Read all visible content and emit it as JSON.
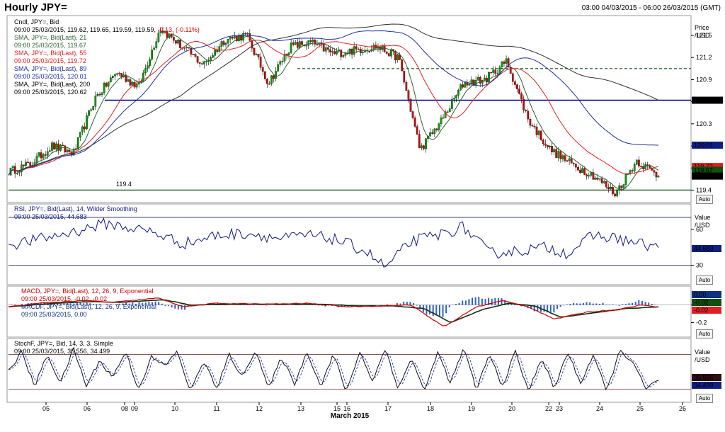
{
  "header": {
    "title": "Hourly JPY=",
    "range": "03:00 04/03/2015 - 06:00 26/03/2015 (GMT)"
  },
  "colors": {
    "up": "#00a000",
    "down": "#d00000",
    "sma21": "#306030",
    "sma55": "#e02020",
    "sma89": "#2030a0",
    "sma200": "#303030",
    "rsi": "#101880",
    "macd": "#d00000",
    "macdf": "#103010",
    "hist": "#3060c0",
    "stoch_k": "#101010",
    "stoch_d": "#3040c0",
    "level": "#000080"
  },
  "price_panel": {
    "legend": [
      {
        "text": "Cndl, JPY=, Bid",
        "color": "#000000"
      },
      {
        "text": "09:00 25/03/2015, 119.62, 119.65, 119.59, 119.59, ",
        "color": "#000000",
        "extra": "-0.13, (-0.11%)",
        "extra_color": "#e00000"
      },
      {
        "text": "SMA, JPY=, Bid(Last),  21",
        "color": "#306030"
      },
      {
        "text": "09:00 25/03/2015, 119.67",
        "color": "#306030"
      },
      {
        "text": "SMA, JPY=, Bid(Last),  55",
        "color": "#e02020"
      },
      {
        "text": "09:00 25/03/2015, 119.72",
        "color": "#e02020"
      },
      {
        "text": "SMA, JPY=, Bid(Last),  89",
        "color": "#2030a0"
      },
      {
        "text": "09:00 25/03/2015, 120.01",
        "color": "#2030a0"
      },
      {
        "text": "SMA, JPY=, Bid(Last),  200",
        "color": "#000000"
      },
      {
        "text": "09:00 25/03/2015, 120.62",
        "color": "#000000"
      }
    ],
    "unit_title": "Price",
    "unit": "/USD",
    "level_label": "119.4",
    "tags": [
      {
        "value": 120.62,
        "label": "120.62",
        "bg": "#000000"
      },
      {
        "value": 120.01,
        "label": "120.01",
        "bg": "#102080"
      },
      {
        "value": 119.72,
        "label": "119.72",
        "bg": "#e02020"
      },
      {
        "value": 119.67,
        "label": "119.67",
        "bg": "#105010"
      },
      {
        "value": 119.59,
        "label": "119.59",
        "bg": "#000000"
      }
    ]
  },
  "rsi_panel": {
    "legend1": "RSI, JPY=, Bid(Last),  14, Wilder Smoothing",
    "legend2": "09:00 25/03/2015, 44.683",
    "unit_title": "Value",
    "unit": "/USD",
    "tag": "44.683"
  },
  "macd_panel": {
    "legend1": "MACD, JPY=, Bid(Last),  12, 26, 9, Exponential",
    "legend2": "09:00 25/03/2015, -0.02, -0.02",
    "legend3": "MACDF, JPY=, Bid(Last),  12, 26, 9, Exponential",
    "legend4": "09:00 25/03/2015, 0.00",
    "tags": [
      "0.00",
      "-0.02",
      "-0.02"
    ]
  },
  "stoch_panel": {
    "legend1": "StochF, JPY=, Bid,  14, 3, 3, Simple",
    "legend2": "09:00 25/03/2015, 35.556, 34.499",
    "unit_title": "Value",
    "unit": "/USD",
    "tags": [
      "35.556",
      "34.499"
    ]
  },
  "x_axis": {
    "labels": [
      "05",
      "06",
      "08",
      "09",
      "10",
      "11",
      "12",
      "13",
      "15",
      "16",
      "17",
      "18",
      "19",
      "20",
      "22",
      "23",
      "24",
      "25",
      "26"
    ],
    "month_label": "March 2015"
  },
  "auto_label": "Auto",
  "chart_data": [
    {
      "type": "candlestick",
      "ylim": [
        119.25,
        121.75
      ],
      "yticks": [
        119.4,
        119.7,
        120.0,
        120.3,
        120.6,
        120.9,
        121.2,
        121.5
      ],
      "ytick_labels": [
        "119.4",
        "",
        "",
        "120.3",
        "",
        "120.9",
        "121.2",
        "121.5"
      ],
      "levels": [
        119.4,
        120.62
      ],
      "dashed_level": 121.05,
      "price_path": [
        [
          "04/03",
          119.65
        ],
        [
          "05/03",
          119.75
        ],
        [
          "05/03",
          120.0
        ],
        [
          "06/03",
          119.9
        ],
        [
          "06/03",
          120.65
        ],
        [
          "06/03",
          121.0
        ],
        [
          "09/03",
          120.8
        ],
        [
          "10/03",
          121.6
        ],
        [
          "10/03",
          121.35
        ],
        [
          "11/03",
          121.1
        ],
        [
          "11/03",
          121.45
        ],
        [
          "12/03",
          121.5
        ],
        [
          "12/03",
          120.85
        ],
        [
          "13/03",
          121.35
        ],
        [
          "16/03",
          121.4
        ],
        [
          "16/03",
          121.25
        ],
        [
          "17/03",
          121.3
        ],
        [
          "18/03",
          121.35
        ],
        [
          "18/03",
          121.2
        ],
        [
          "18/03",
          119.95
        ],
        [
          "19/03",
          120.35
        ],
        [
          "19/03",
          120.85
        ],
        [
          "20/03",
          120.9
        ],
        [
          "20/03",
          121.15
        ],
        [
          "20/03",
          120.35
        ],
        [
          "23/03",
          119.95
        ],
        [
          "23/03",
          119.75
        ],
        [
          "24/03",
          119.6
        ],
        [
          "24/03",
          119.35
        ],
        [
          "24/03",
          119.8
        ],
        [
          "25/03",
          119.59
        ]
      ],
      "series": [
        {
          "name": "SMA 21",
          "last": 119.67
        },
        {
          "name": "SMA 55",
          "last": 119.72
        },
        {
          "name": "SMA 89",
          "last": 120.01
        },
        {
          "name": "SMA 200",
          "last": 120.62
        }
      ]
    },
    {
      "type": "line",
      "ylim": [
        15,
        80
      ],
      "yticks": [
        30,
        60
      ],
      "levels": [
        30,
        70
      ],
      "last": 44.683,
      "path": [
        [
          0,
          47
        ],
        [
          5,
          52
        ],
        [
          10,
          58
        ],
        [
          15,
          65
        ],
        [
          18,
          62
        ],
        [
          22,
          58
        ],
        [
          27,
          48
        ],
        [
          32,
          55
        ],
        [
          37,
          57
        ],
        [
          42,
          52
        ],
        [
          46,
          55
        ],
        [
          50,
          52
        ],
        [
          55,
          42
        ],
        [
          58,
          28
        ],
        [
          62,
          50
        ],
        [
          66,
          55
        ],
        [
          70,
          62
        ],
        [
          74,
          40
        ],
        [
          78,
          42
        ],
        [
          83,
          45
        ],
        [
          86,
          40
        ],
        [
          90,
          55
        ],
        [
          94,
          52
        ],
        [
          97,
          48
        ],
        [
          100,
          44.683
        ]
      ]
    },
    {
      "type": "line",
      "ylim": [
        -0.35,
        0.2
      ],
      "yticks": [
        0.0,
        -0.2
      ],
      "last": [
        -0.02,
        -0.02,
        0.0
      ],
      "macd_path": [
        [
          0,
          -0.02
        ],
        [
          6,
          0.03
        ],
        [
          12,
          0.05
        ],
        [
          16,
          0.03
        ],
        [
          23,
          0.08
        ],
        [
          27,
          -0.02
        ],
        [
          32,
          0.02
        ],
        [
          40,
          0.01
        ],
        [
          46,
          0.02
        ],
        [
          52,
          -0.02
        ],
        [
          57,
          -0.01
        ],
        [
          62,
          0.0
        ],
        [
          67,
          -0.25
        ],
        [
          72,
          -0.02
        ],
        [
          76,
          0.05
        ],
        [
          80,
          -0.02
        ],
        [
          84,
          -0.16
        ],
        [
          89,
          -0.08
        ],
        [
          94,
          -0.05
        ],
        [
          97,
          0.0
        ],
        [
          100,
          -0.02
        ]
      ],
      "signal_path": [
        [
          0,
          -0.02
        ],
        [
          7,
          0.02
        ],
        [
          13,
          0.04
        ],
        [
          17,
          0.03
        ],
        [
          24,
          0.06
        ],
        [
          28,
          0.0
        ],
        [
          34,
          0.01
        ],
        [
          42,
          0.01
        ],
        [
          48,
          0.01
        ],
        [
          54,
          -0.01
        ],
        [
          59,
          -0.01
        ],
        [
          64,
          -0.04
        ],
        [
          68,
          -0.2
        ],
        [
          73,
          -0.05
        ],
        [
          77,
          0.02
        ],
        [
          81,
          -0.01
        ],
        [
          85,
          -0.14
        ],
        [
          90,
          -0.09
        ],
        [
          95,
          -0.04
        ],
        [
          100,
          -0.02
        ]
      ]
    },
    {
      "type": "line",
      "ylim": [
        0,
        105
      ],
      "levels": [
        20,
        80
      ],
      "last": [
        35.556,
        34.499
      ],
      "k_path": [
        [
          0,
          50
        ],
        [
          2,
          85
        ],
        [
          4,
          25
        ],
        [
          6,
          80
        ],
        [
          8,
          30
        ],
        [
          10,
          90
        ],
        [
          12,
          25
        ],
        [
          14,
          70
        ],
        [
          16,
          40
        ],
        [
          18,
          85
        ],
        [
          20,
          20
        ],
        [
          22,
          75
        ],
        [
          24,
          60
        ],
        [
          26,
          85
        ],
        [
          28,
          15
        ],
        [
          30,
          70
        ],
        [
          32,
          20
        ],
        [
          34,
          80
        ],
        [
          36,
          40
        ],
        [
          38,
          90
        ],
        [
          40,
          20
        ],
        [
          42,
          75
        ],
        [
          44,
          30
        ],
        [
          46,
          85
        ],
        [
          48,
          25
        ],
        [
          50,
          80
        ],
        [
          52,
          15
        ],
        [
          54,
          85
        ],
        [
          56,
          35
        ],
        [
          58,
          90
        ],
        [
          60,
          20
        ],
        [
          62,
          75
        ],
        [
          64,
          15
        ],
        [
          66,
          85
        ],
        [
          68,
          30
        ],
        [
          70,
          90
        ],
        [
          72,
          20
        ],
        [
          74,
          80
        ],
        [
          76,
          25
        ],
        [
          78,
          85
        ],
        [
          80,
          15
        ],
        [
          82,
          75
        ],
        [
          84,
          20
        ],
        [
          86,
          85
        ],
        [
          88,
          30
        ],
        [
          90,
          80
        ],
        [
          92,
          15
        ],
        [
          94,
          85
        ],
        [
          96,
          70
        ],
        [
          98,
          20
        ],
        [
          100,
          35.556
        ]
      ]
    }
  ]
}
